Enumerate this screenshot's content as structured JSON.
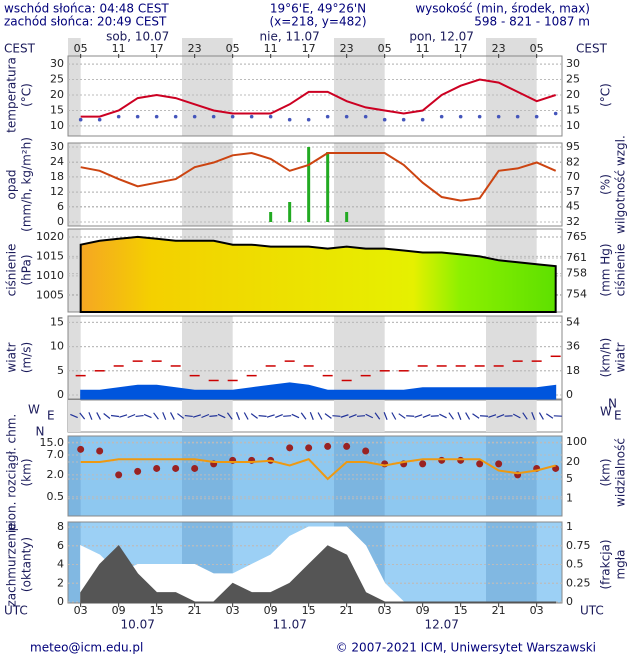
{
  "header": {
    "sunrise": "wschód słońca: 04:48 CEST",
    "sunset": "zachód słońca: 20:49 CEST",
    "coords": "19°6'E, 49°26'N",
    "grid": "(x=218, y=482)",
    "height_label": "wysokość (min, środek, max)",
    "height_values": "598 - 821 - 1087 m",
    "top_left": "CEST",
    "top_right": "CEST",
    "bottom_left": "UTC",
    "bottom_right": "UTC",
    "top_dates": [
      "sob, 10.07",
      "nie, 11.07",
      "pon, 12.07"
    ],
    "bottom_dates": [
      "10.07",
      "11.07",
      "12.07"
    ]
  },
  "footer": {
    "email": "meteo@icm.edu.pl",
    "copyright": "© 2007-2021 ICM, Uniwersytet Warszawski"
  },
  "direction_panel": {
    "compass": [
      "N",
      "E",
      "S",
      "W"
    ]
  },
  "chart_data": [
    {
      "type": "line",
      "ylabel": [
        "temperatura",
        "(°C)"
      ],
      "y2label": [
        "(°C)"
      ],
      "x": [
        3,
        6,
        9,
        12,
        15,
        18,
        21,
        24,
        27,
        30,
        33,
        36,
        39,
        42,
        45,
        48,
        51,
        54,
        57,
        60,
        63,
        66,
        69,
        72,
        75,
        78
      ],
      "xlim": [
        1,
        79
      ],
      "xticks": [
        {
          "value": 3,
          "label": "05"
        },
        {
          "value": 9,
          "label": "11"
        },
        {
          "value": 15,
          "label": "17"
        },
        {
          "value": 21,
          "label": "23"
        },
        {
          "value": 27,
          "label": "05"
        },
        {
          "value": 33,
          "label": "11"
        },
        {
          "value": 39,
          "label": "17"
        },
        {
          "value": 45,
          "label": "23"
        },
        {
          "value": 51,
          "label": "05"
        },
        {
          "value": 57,
          "label": "11"
        },
        {
          "value": 63,
          "label": "17"
        },
        {
          "value": 69,
          "label": "23"
        },
        {
          "value": 75,
          "label": "05"
        }
      ],
      "ylim": [
        9,
        31
      ],
      "yticks": [
        10,
        15,
        20,
        25,
        30
      ],
      "y2lim": [
        9,
        31
      ],
      "y2ticks": [
        10,
        15,
        20,
        25,
        30
      ],
      "series": [
        {
          "type": "line",
          "color": "#cc0022",
          "values": [
            13,
            13,
            15,
            19,
            20,
            19,
            17,
            15,
            14,
            14,
            14,
            17,
            21,
            21,
            18,
            16,
            15,
            14,
            15,
            20,
            23,
            25,
            24,
            21,
            18,
            20
          ]
        },
        {
          "type": "dots",
          "color": "#4455bb",
          "values": [
            12,
            12,
            13,
            13,
            13,
            13,
            13,
            13,
            13,
            13,
            13,
            12,
            12,
            13,
            13,
            13,
            12,
            12,
            12,
            13,
            13,
            13,
            13,
            13,
            13,
            14
          ]
        }
      ]
    },
    {
      "type": "line",
      "ylabel": [
        "opad",
        "(mm/h, kg/m²h)"
      ],
      "y2label": [
        "(%)",
        "wilgotność wzgl."
      ],
      "x": [
        3,
        6,
        9,
        12,
        15,
        18,
        21,
        24,
        27,
        30,
        33,
        36,
        39,
        42,
        45,
        48,
        51,
        54,
        57,
        60,
        63,
        66,
        69,
        72,
        75,
        78
      ],
      "xlim": [
        1,
        79
      ],
      "ylim": [
        0,
        30
      ],
      "yticks": [
        0,
        6,
        12,
        18,
        24,
        30
      ],
      "y2lim": [
        32,
        95
      ],
      "y2ticks": [
        32,
        45,
        57,
        70,
        82,
        95
      ],
      "series": [
        {
          "type": "bars",
          "color": "#22aa22",
          "values": [
            0,
            0,
            0,
            0,
            0,
            0,
            0,
            0,
            0,
            0,
            4,
            8,
            30,
            28,
            4,
            0,
            0,
            0,
            0,
            0,
            0,
            0,
            0,
            0,
            0,
            0
          ]
        },
        {
          "type": "line",
          "axis": "y2",
          "color": "#cc4411",
          "values": [
            78,
            75,
            68,
            62,
            65,
            68,
            78,
            82,
            88,
            90,
            85,
            75,
            80,
            90,
            90,
            90,
            90,
            80,
            65,
            53,
            50,
            52,
            75,
            77,
            82,
            75
          ]
        }
      ]
    },
    {
      "type": "line",
      "ylabel": [
        "ciśnienie",
        "(hPa)"
      ],
      "y2label": [
        "(mm Hg)",
        "ciśnienie"
      ],
      "x": [
        3,
        6,
        9,
        12,
        15,
        18,
        21,
        24,
        27,
        30,
        33,
        36,
        39,
        42,
        45,
        48,
        51,
        54,
        57,
        60,
        63,
        66,
        69,
        72,
        75,
        78
      ],
      "xlim": [
        1,
        79
      ],
      "ylim": [
        1002,
        1021
      ],
      "yticks": [
        1005,
        1010,
        1015,
        1020
      ],
      "y2lim": [
        751.6,
        765.8
      ],
      "y2ticks": [
        754,
        758,
        761,
        765
      ],
      "series": [
        {
          "type": "filled",
          "color": "#000000",
          "values": [
            1018,
            1019,
            1019.5,
            1020,
            1019.5,
            1019,
            1019,
            1019,
            1018,
            1018,
            1017.5,
            1017.5,
            1017.5,
            1017,
            1017.5,
            1017,
            1017,
            1016.5,
            1016,
            1016,
            1015.5,
            1015,
            1014,
            1013.5,
            1013,
            1012.5
          ]
        }
      ]
    },
    {
      "type": "line",
      "ylabel": [
        "wiatr",
        "(m/s)"
      ],
      "y2label": [
        "(km/h)",
        "wiatr"
      ],
      "x": [
        3,
        6,
        9,
        12,
        15,
        18,
        21,
        24,
        27,
        30,
        33,
        36,
        39,
        42,
        45,
        48,
        51,
        54,
        57,
        60,
        63,
        66,
        69,
        72,
        75,
        78
      ],
      "xlim": [
        1,
        79
      ],
      "ylim": [
        0,
        15.5
      ],
      "yticks": [
        0,
        5,
        10,
        15
      ],
      "y2lim": [
        0,
        55.8
      ],
      "y2ticks": [
        0,
        18,
        36,
        54
      ],
      "series": [
        {
          "type": "area",
          "color": "#0055dd",
          "values": [
            1,
            1,
            1.5,
            2,
            2,
            1.5,
            1,
            1,
            1,
            1.5,
            2,
            2.5,
            2,
            1,
            1,
            1,
            1,
            1,
            1.5,
            1.5,
            1.5,
            1.5,
            1.5,
            1.5,
            1.5,
            2
          ]
        },
        {
          "type": "dash",
          "color": "#cc0000",
          "values": [
            4,
            5,
            6,
            7,
            7,
            6,
            4,
            3,
            3,
            4,
            6,
            7,
            6,
            4,
            3,
            4,
            5,
            5,
            6,
            6,
            6,
            6,
            6,
            7,
            7,
            8
          ]
        }
      ]
    },
    {
      "type": "line",
      "log": true,
      "ylabel": [
        "pion. rozciągł. chm.",
        "(km)"
      ],
      "y2label": [
        "(km)",
        "widzialność"
      ],
      "x": [
        3,
        6,
        9,
        12,
        15,
        18,
        21,
        24,
        27,
        30,
        33,
        36,
        39,
        42,
        45,
        48,
        51,
        54,
        57,
        60,
        63,
        66,
        69,
        72,
        75,
        78
      ],
      "xlim": [
        1,
        79
      ],
      "ylim": [
        0.3,
        18
      ],
      "yticks": [
        {
          "value": 15,
          "label": "15.0"
        },
        {
          "value": 7,
          "label": "7.0"
        },
        {
          "value": 2,
          "label": "2.0"
        },
        {
          "value": 0.5,
          "label": "0.5"
        }
      ],
      "y2lim": [
        0.6,
        120
      ],
      "y2ticks": [
        100,
        20,
        5,
        1
      ],
      "series": [
        {
          "type": "dots",
          "color": "#992222",
          "values": [
            10,
            9,
            2,
            2.5,
            3,
            3,
            3,
            4,
            5,
            5,
            5,
            11,
            11,
            12,
            12,
            9,
            4,
            4,
            4,
            5,
            5,
            4,
            4,
            2,
            3,
            3
          ]
        },
        {
          "type": "line",
          "axis": "y2",
          "color": "#ee9911",
          "values": [
            20,
            20,
            25,
            25,
            25,
            25,
            25,
            20,
            20,
            20,
            22,
            15,
            25,
            5,
            20,
            20,
            15,
            20,
            25,
            25,
            25,
            25,
            10,
            8,
            10,
            15
          ]
        }
      ]
    },
    {
      "type": "line",
      "ylabel": [
        "zachmurzenie",
        "(oktanty)"
      ],
      "y2label": [
        "(frakcja)",
        "mgła"
      ],
      "x": [
        3,
        6,
        9,
        12,
        15,
        18,
        21,
        24,
        27,
        30,
        33,
        36,
        39,
        42,
        45,
        48,
        51,
        54,
        57,
        60,
        63,
        66,
        69,
        72,
        75,
        78
      ],
      "xlim": [
        1,
        79
      ],
      "xticks": [
        {
          "value": 3,
          "label": "03"
        },
        {
          "value": 9,
          "label": "09"
        },
        {
          "value": 15,
          "label": "15"
        },
        {
          "value": 21,
          "label": "21"
        },
        {
          "value": 27,
          "label": "03"
        },
        {
          "value": 33,
          "label": "09"
        },
        {
          "value": 39,
          "label": "15"
        },
        {
          "value": 45,
          "label": "21"
        },
        {
          "value": 51,
          "label": "03"
        },
        {
          "value": 57,
          "label": "09"
        },
        {
          "value": 63,
          "label": "15"
        },
        {
          "value": 69,
          "label": "21"
        },
        {
          "value": 75,
          "label": "03"
        }
      ],
      "ylim": [
        0,
        8
      ],
      "yticks": [
        0,
        2,
        4,
        6,
        8
      ],
      "y2lim": [
        0,
        1
      ],
      "y2ticks": [
        0,
        0.25,
        0.5,
        0.75,
        1
      ],
      "series": [
        {
          "type": "area",
          "color": "#ffffff",
          "values": [
            6,
            5,
            3,
            4,
            4,
            4,
            4,
            3,
            3,
            4,
            5,
            7,
            8,
            8,
            8,
            6,
            2,
            0,
            0,
            0,
            0,
            0,
            0,
            0,
            0,
            0
          ]
        },
        {
          "type": "area",
          "color": "#555555",
          "values": [
            1,
            4,
            6,
            3,
            1,
            1,
            0,
            0,
            2,
            1,
            1,
            2,
            4,
            6,
            5,
            1,
            0,
            0,
            0,
            0,
            0,
            0,
            0,
            0,
            0,
            0
          ]
        }
      ]
    }
  ]
}
